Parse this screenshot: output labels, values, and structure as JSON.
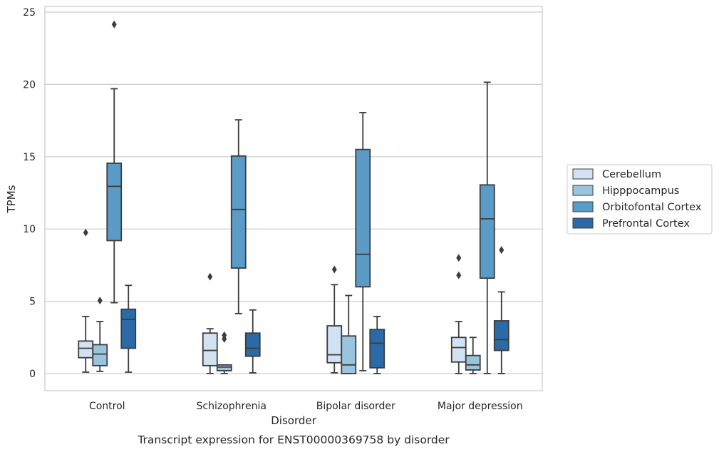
{
  "chart_data": {
    "type": "box",
    "caption": "Transcript expression for ENST00000369758 by disorder",
    "xlabel": "Disorder",
    "ylabel": "TPMs",
    "ylim": [
      -1.2,
      25.5
    ],
    "yticks": [
      "0",
      "5",
      "10",
      "15",
      "20",
      "25"
    ],
    "categories": [
      "Control",
      "Schizophrenia",
      "Bipolar disorder",
      "Major depression"
    ],
    "grid": "horizontal",
    "legend_position": "right",
    "series": [
      {
        "name": "Cerebellum",
        "color": "#d1e2f2",
        "boxes": [
          {
            "whislo": 0.1,
            "q1": 1.1,
            "med": 1.75,
            "q3": 2.25,
            "whishi": 3.95,
            "fliers": [
              9.75
            ]
          },
          {
            "whislo": 0.0,
            "q1": 0.55,
            "med": 1.6,
            "q3": 2.8,
            "whishi": 3.1,
            "fliers": [
              6.7
            ]
          },
          {
            "whislo": 0.05,
            "q1": 0.75,
            "med": 1.3,
            "q3": 3.3,
            "whishi": 6.15,
            "fliers": [
              7.2
            ]
          },
          {
            "whislo": 0.0,
            "q1": 0.8,
            "med": 1.8,
            "q3": 2.5,
            "whishi": 3.6,
            "fliers": [
              6.8,
              8.0
            ]
          }
        ]
      },
      {
        "name": "Hipppocampus",
        "color": "#9ac3dd",
        "boxes": [
          {
            "whislo": 0.15,
            "q1": 0.55,
            "med": 1.35,
            "q3": 2.0,
            "whishi": 3.6,
            "fliers": [
              5.05
            ]
          },
          {
            "whislo": 0.0,
            "q1": 0.2,
            "med": 0.45,
            "q3": 0.6,
            "whishi": 0.6,
            "fliers": [
              2.4,
              2.65
            ]
          },
          {
            "whislo": 0.0,
            "q1": 0.0,
            "med": 0.6,
            "q3": 2.6,
            "whishi": 5.4,
            "fliers": []
          },
          {
            "whislo": 0.0,
            "q1": 0.25,
            "med": 0.6,
            "q3": 1.25,
            "whishi": 2.5,
            "fliers": []
          }
        ]
      },
      {
        "name": "Orbitofontal Cortex",
        "color": "#5a9bc7",
        "boxes": [
          {
            "whislo": 4.9,
            "q1": 9.2,
            "med": 12.95,
            "q3": 14.55,
            "whishi": 19.7,
            "fliers": [
              24.15
            ]
          },
          {
            "whislo": 4.15,
            "q1": 7.3,
            "med": 11.35,
            "q3": 15.05,
            "whishi": 17.55,
            "fliers": []
          },
          {
            "whislo": 0.2,
            "q1": 6.0,
            "med": 8.25,
            "q3": 15.5,
            "whishi": 18.05,
            "fliers": []
          },
          {
            "whislo": 0.0,
            "q1": 6.6,
            "med": 10.7,
            "q3": 13.05,
            "whishi": 20.15,
            "fliers": []
          }
        ]
      },
      {
        "name": "Prefrontal Cortex",
        "color": "#2b6aa6",
        "boxes": [
          {
            "whislo": 0.1,
            "q1": 1.75,
            "med": 3.75,
            "q3": 4.45,
            "whishi": 6.1,
            "fliers": []
          },
          {
            "whislo": 0.05,
            "q1": 1.2,
            "med": 1.75,
            "q3": 2.8,
            "whishi": 4.4,
            "fliers": []
          },
          {
            "whislo": 0.0,
            "q1": 0.4,
            "med": 2.1,
            "q3": 3.05,
            "whishi": 3.95,
            "fliers": []
          },
          {
            "whislo": 0.0,
            "q1": 1.6,
            "med": 2.35,
            "q3": 3.65,
            "whishi": 5.65,
            "fliers": [
              8.55
            ]
          }
        ]
      }
    ]
  }
}
